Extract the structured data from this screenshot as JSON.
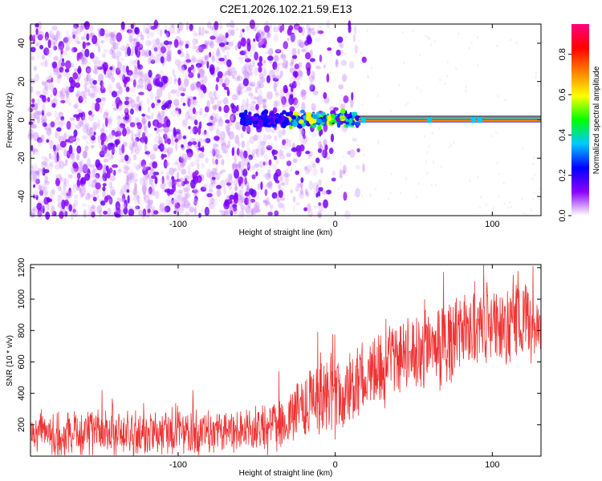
{
  "title": "C2E1.2026.102.21.59.E13",
  "chart_data": [
    {
      "type": "heatmap",
      "xlabel": "Height of straight line (km)",
      "ylabel": "Frequency (Hz)",
      "xlim": [
        -194,
        131
      ],
      "ylim": [
        -50,
        50
      ],
      "xticks": [
        -100,
        0,
        100
      ],
      "xtick_labels": [
        "-100",
        "0",
        "100"
      ],
      "yticks": [
        -40,
        -20,
        0,
        20,
        40
      ],
      "ytick_labels": [
        "-40",
        "-20",
        "0",
        "20",
        "40"
      ],
      "colorbar": {
        "label": "Normalized spectral amplitude",
        "range": [
          0,
          0.95
        ],
        "ticks": [
          0,
          0.2,
          0.4,
          0.6,
          0.8
        ],
        "tick_labels": [
          "0.0",
          "0.2",
          "0.4",
          "0.6",
          "0.8"
        ],
        "colors": [
          "#ffffff",
          "#8a00ff",
          "#0000ff",
          "#00c8ff",
          "#00ff00",
          "#ffff00",
          "#ff8000",
          "#ff0000",
          "#ff0080"
        ]
      },
      "features": {
        "noise_region_x": [
          -194,
          -15
        ],
        "noise_max_amplitude": 0.15,
        "transition_x": [
          -40,
          15
        ],
        "carrier_freq_hz": 0,
        "carrier_x": [
          15,
          131
        ],
        "carrier_amplitude": 0.95
      }
    },
    {
      "type": "line",
      "xlabel": "Height of straight line (km)",
      "ylabel": "SNR (10 * v/v)",
      "xlim": [
        -194,
        131
      ],
      "ylim": [
        0,
        1220
      ],
      "xticks": [
        -100,
        0,
        100
      ],
      "xtick_labels": [
        "-100",
        "0",
        "100"
      ],
      "yticks": [
        200,
        400,
        600,
        800,
        1000,
        1200
      ],
      "ytick_labels": [
        "200",
        "400",
        "600",
        "800",
        "1000",
        "1200"
      ],
      "series": [
        {
          "name": "SNR",
          "color": "#ee3333",
          "trend_x": [
            -194,
            -100,
            -50,
            -30,
            -15,
            0,
            20,
            40,
            60,
            80,
            100,
            131
          ],
          "trend_mean": [
            140,
            150,
            170,
            230,
            380,
            380,
            520,
            620,
            700,
            760,
            820,
            860
          ],
          "trend_spread": [
            180,
            180,
            180,
            220,
            320,
            340,
            300,
            300,
            300,
            300,
            300,
            300
          ]
        }
      ]
    }
  ]
}
